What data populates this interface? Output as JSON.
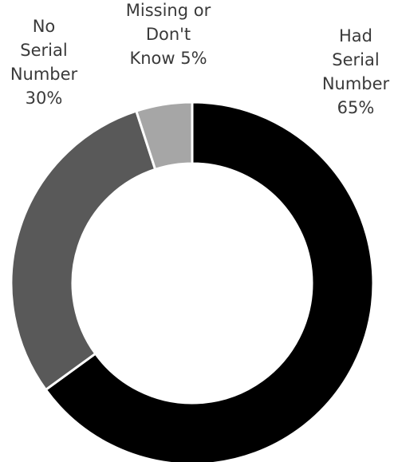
{
  "chart_data": {
    "type": "pie",
    "variant": "donut",
    "title": "",
    "categories": [
      "Had Serial Number",
      "No Serial Number",
      "Missing or Don't Know"
    ],
    "values": [
      65,
      30,
      5
    ],
    "unit": "%",
    "legend": "none",
    "labels": [
      {
        "lines": [
          "Had",
          "Serial",
          "Number",
          "65%"
        ]
      },
      {
        "lines": [
          "No",
          "Serial",
          "Number",
          "30%"
        ]
      },
      {
        "lines": [
          "Missing or",
          "Don't",
          "Know 5%"
        ]
      }
    ],
    "colors": [
      "#000000",
      "#595959",
      "#a6a6a6"
    ],
    "separator_color": "#ffffff"
  }
}
